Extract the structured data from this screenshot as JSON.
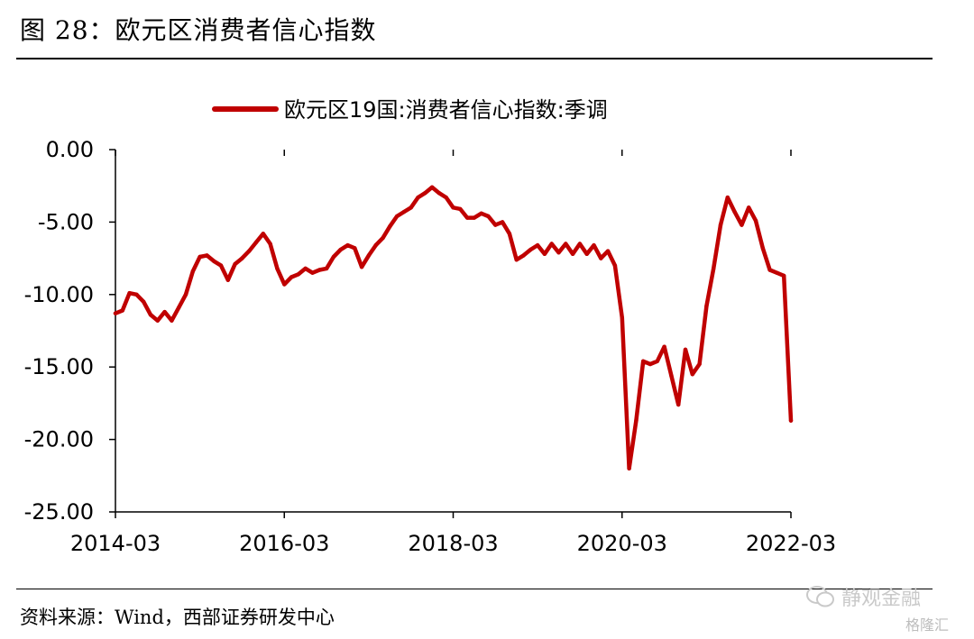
{
  "header": {
    "title": "图 28：欧元区消费者信心指数"
  },
  "footer": {
    "source": "资料来源：Wind，西部证券研发中心"
  },
  "watermark": {
    "text": "静观金融",
    "brand": "格隆汇"
  },
  "colors": {
    "series": "#c00000",
    "axis": "#000000"
  },
  "chart_data": {
    "type": "line",
    "title": "",
    "legend": {
      "position": "top-center"
    },
    "series": [
      {
        "name": "欧元区19国:消费者信心指数:季调",
        "x": [
          "2014-03",
          "2014-04",
          "2014-05",
          "2014-06",
          "2014-07",
          "2014-08",
          "2014-09",
          "2014-10",
          "2014-11",
          "2014-12",
          "2015-01",
          "2015-02",
          "2015-03",
          "2015-04",
          "2015-05",
          "2015-06",
          "2015-07",
          "2015-08",
          "2015-09",
          "2015-10",
          "2015-11",
          "2015-12",
          "2016-01",
          "2016-02",
          "2016-03",
          "2016-04",
          "2016-05",
          "2016-06",
          "2016-07",
          "2016-08",
          "2016-09",
          "2016-10",
          "2016-11",
          "2016-12",
          "2017-01",
          "2017-02",
          "2017-03",
          "2017-04",
          "2017-05",
          "2017-06",
          "2017-07",
          "2017-08",
          "2017-09",
          "2017-10",
          "2017-11",
          "2017-12",
          "2018-01",
          "2018-02",
          "2018-03",
          "2018-04",
          "2018-05",
          "2018-06",
          "2018-07",
          "2018-08",
          "2018-09",
          "2018-10",
          "2018-11",
          "2018-12",
          "2019-01",
          "2019-02",
          "2019-03",
          "2019-04",
          "2019-05",
          "2019-06",
          "2019-07",
          "2019-08",
          "2019-09",
          "2019-10",
          "2019-11",
          "2019-12",
          "2020-01",
          "2020-02",
          "2020-03",
          "2020-04",
          "2020-05",
          "2020-06",
          "2020-07",
          "2020-08",
          "2020-09",
          "2020-10",
          "2020-11",
          "2020-12",
          "2021-01",
          "2021-02",
          "2021-03",
          "2021-04",
          "2021-05",
          "2021-06",
          "2021-07",
          "2021-08",
          "2021-09",
          "2021-10",
          "2021-11",
          "2021-12",
          "2022-01",
          "2022-02",
          "2022-03"
        ],
        "values": [
          -11.3,
          -11.1,
          -9.9,
          -10.0,
          -10.5,
          -11.4,
          -11.8,
          -11.2,
          -11.8,
          -10.9,
          -10.0,
          -8.4,
          -7.4,
          -7.3,
          -7.7,
          -8.0,
          -9.0,
          -7.9,
          -7.5,
          -7.0,
          -6.4,
          -5.8,
          -6.5,
          -8.2,
          -9.3,
          -8.8,
          -8.6,
          -8.2,
          -8.5,
          -8.3,
          -8.2,
          -7.4,
          -6.9,
          -6.6,
          -6.8,
          -8.1,
          -7.3,
          -6.6,
          -6.1,
          -5.3,
          -4.6,
          -4.3,
          -4.0,
          -3.3,
          -3.0,
          -2.6,
          -3.0,
          -3.3,
          -4.0,
          -4.1,
          -4.7,
          -4.7,
          -4.4,
          -4.6,
          -5.2,
          -5.0,
          -5.8,
          -7.6,
          -7.3,
          -6.9,
          -6.6,
          -7.2,
          -6.5,
          -7.1,
          -6.5,
          -7.2,
          -6.5,
          -7.2,
          -6.6,
          -7.5,
          -7.0,
          -8.0,
          -11.6,
          -22.0,
          -18.7,
          -14.6,
          -14.8,
          -14.6,
          -13.6,
          -15.6,
          -17.6,
          -13.8,
          -15.5,
          -14.8,
          -10.8,
          -8.2,
          -5.2,
          -3.3,
          -4.3,
          -5.2,
          -4.0,
          -4.9,
          -6.8,
          -8.3,
          -8.5,
          -8.7,
          -18.7
        ]
      }
    ],
    "xticks": [
      "2014-03",
      "2016-03",
      "2018-03",
      "2020-03",
      "2022-03"
    ],
    "yticks": [
      "0.00",
      "-5.00",
      "-10.00",
      "-15.00",
      "-20.00",
      "-25.00"
    ],
    "xlabel": "",
    "ylabel": "",
    "ylim": [
      -25,
      0
    ],
    "grid": false
  }
}
